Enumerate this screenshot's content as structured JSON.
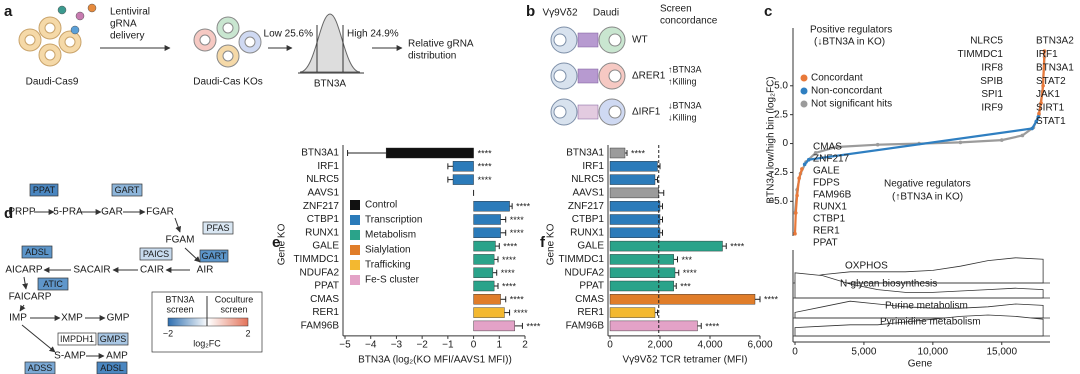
{
  "panel_labels": [
    "a",
    "b",
    "c",
    "d",
    "e",
    "f"
  ],
  "panel_a": {
    "delivery_text": [
      "Lentiviral",
      "gRNA",
      "delivery"
    ],
    "parent_cells": "Daudi-Cas9",
    "ko_cells": "Daudi-Cas KOs",
    "low_gate": "Low 25.6%",
    "high_gate": "High 24.9%",
    "histogram_axis": "BTN3A",
    "output": [
      "Relative gRNA",
      "distribution"
    ]
  },
  "panel_b": {
    "effector": "Vγ9Vδ2",
    "target": "Daudi",
    "header": [
      "Screen",
      "concordance"
    ],
    "rows": [
      {
        "label": "WT"
      },
      {
        "label": "ΔRER1",
        "items": [
          "↑BTN3A",
          "↑Killing"
        ]
      },
      {
        "label": "ΔIRF1",
        "items": [
          "↓BTN3A",
          "↓Killing"
        ]
      }
    ]
  },
  "panel_d": {
    "metabolites": [
      "PRPP",
      "5-PRA",
      "GAR",
      "FGAR",
      "FGAM",
      "AIR",
      "CAIR",
      "SACAIR",
      "AICARP",
      "FAICARP",
      "IMP",
      "XMP",
      "GMP",
      "S-AMP",
      "AMP"
    ],
    "enzymes": [
      "PPAT",
      "GART",
      "PFAS",
      "PAICS",
      "GART",
      "ADSL",
      "ATIC",
      "IMPDH1",
      "GMPS",
      "ADSS",
      "ADSL"
    ],
    "legend": {
      "rows": [
        "BTN3A",
        "screen",
        "Coculture",
        "screen"
      ],
      "min": "−2",
      "max": "2",
      "unit": "log₂FC"
    }
  },
  "chart_data": [
    {
      "type": "hbar",
      "ylabel": "Gene KO",
      "xlabel": "BTN3A (log₂(KO MFI/AAVS1 MFI))",
      "categories": [
        "BTN3A1",
        "IRF1",
        "NLRC5",
        "AAVS1",
        "ZNF217",
        "CTBP1",
        "RUNX1",
        "GALE",
        "TIMMDC1",
        "NDUFA2",
        "PPAT",
        "CMAS",
        "RER1",
        "FAM96B"
      ],
      "values": [
        -3.4,
        -0.8,
        -0.8,
        0,
        1.4,
        1.05,
        1.05,
        0.85,
        0.8,
        0.75,
        0.8,
        1.05,
        1.2,
        1.6
      ],
      "errors": [
        1.5,
        0.2,
        0.2,
        0,
        0.1,
        0.2,
        0.2,
        0.15,
        0.15,
        0.15,
        0.15,
        0.2,
        0.2,
        0.3
      ],
      "colors": [
        "#111111",
        "#2b7bba",
        "#2b7bba",
        "#111111",
        "#2b7bba",
        "#2b7bba",
        "#2b7bba",
        "#2aa38a",
        "#2aa38a",
        "#2aa38a",
        "#2aa38a",
        "#e07d2a",
        "#f3b830",
        "#e3a2c7"
      ],
      "significance": [
        "****",
        "****",
        "****",
        null,
        "****",
        "****",
        "****",
        "****",
        "****",
        "****",
        "****",
        "****",
        "****",
        "****"
      ],
      "xlim": [
        -5,
        2
      ],
      "xticks": [
        {
          "value": -5,
          "label": "−5"
        },
        {
          "value": -4,
          "label": "−4"
        },
        {
          "value": -3,
          "label": "−3"
        },
        {
          "value": -2,
          "label": "−2"
        },
        {
          "value": -1,
          "label": "−1"
        },
        0,
        1,
        2
      ],
      "legend": [
        {
          "name": "Control",
          "color": "#111111"
        },
        {
          "name": "Transcription",
          "color": "#2b7bba"
        },
        {
          "name": "Metabolism",
          "color": "#2aa38a"
        },
        {
          "name": "Sialylation",
          "color": "#e07d2a"
        },
        {
          "name": "Trafficking",
          "color": "#f3b830"
        },
        {
          "name": "Fe-S cluster",
          "color": "#e3a2c7"
        }
      ]
    },
    {
      "type": "hbar",
      "ylabel": "Gene KO",
      "xlabel": "Vγ9Vδ2 TCR tetramer (MFI)",
      "categories": [
        "BTN3A1",
        "IRF1",
        "NLRC5",
        "AAVS1",
        "ZNF217",
        "CTBP1",
        "RUNX1",
        "GALE",
        "TIMMDC1",
        "NDUFA2",
        "PPAT",
        "CMAS",
        "RER1",
        "FAM96B"
      ],
      "values": [
        600,
        1900,
        1800,
        1950,
        2000,
        2000,
        2000,
        4500,
        2550,
        2600,
        2550,
        5800,
        1800,
        3500
      ],
      "errors": [
        80,
        100,
        100,
        200,
        100,
        100,
        100,
        150,
        150,
        150,
        100,
        200,
        100,
        150
      ],
      "colors": [
        "#9b9b9b",
        "#2b7bba",
        "#2b7bba",
        "#9b9b9b",
        "#2b7bba",
        "#2b7bba",
        "#2b7bba",
        "#2aa38a",
        "#2aa38a",
        "#2aa38a",
        "#2aa38a",
        "#e07d2a",
        "#f3b830",
        "#e3a2c7"
      ],
      "significance": [
        "****",
        null,
        null,
        null,
        null,
        null,
        null,
        "****",
        "***",
        "****",
        "***",
        "****",
        null,
        "****"
      ],
      "xlim": [
        0,
        6000
      ],
      "xticks": [
        0,
        {
          "value": 2000,
          "label": "2,000"
        },
        {
          "value": 4000,
          "label": "4,000"
        },
        {
          "value": 6000,
          "label": "6,000"
        }
      ],
      "reference_line": true
    },
    {
      "type": "rank",
      "ylabel": "BTN3A low/high bin (log₂FC)",
      "xlim": [
        0,
        18500
      ],
      "ylim": [
        -8,
        10
      ],
      "yticks": [
        {
          "value": 5,
          "label": "5.0"
        },
        {
          "value": 2.5,
          "label": "2.5"
        },
        0,
        {
          "value": -2.5,
          "label": "−2.5"
        },
        {
          "value": -5,
          "label": "−5.0"
        }
      ],
      "series": [
        {
          "name": "Not significant hits",
          "color": "#9b9b9b",
          "x": [
            0,
            150,
            400,
            800,
            1500,
            3000,
            6000,
            9000,
            12000,
            15000,
            16500,
            17300,
            17700,
            17950,
            18100
          ],
          "values": [
            -6,
            -4,
            -2.6,
            -1.6,
            -0.8,
            -0.3,
            -0.1,
            0,
            0.1,
            0.3,
            0.7,
            1.4,
            2.5,
            4.5,
            7.5
          ]
        },
        {
          "name": "Concordant",
          "color": "#e8793a",
          "x": [
            0,
            60,
            150,
            300,
            500,
            9000,
            17700,
            17850,
            18000,
            18100
          ],
          "values": [
            -7.8,
            -6,
            -4.5,
            -3,
            -2.2,
            null,
            2.6,
            3.5,
            5,
            8
          ]
        },
        {
          "name": "Non-concordant",
          "color": "#2f7fc1",
          "x": [
            700,
            1000,
            17200,
            17500,
            17650
          ],
          "values": [
            -1.8,
            -1.4,
            1.3,
            1.9,
            2.3
          ]
        }
      ],
      "legend_order": [
        1,
        2,
        0
      ],
      "positive_annotation": [
        "Positive regulators",
        "(↓BTN3A in KO)"
      ],
      "negative_annotation": [
        "Negative regulators",
        "(↑BTN3A in KO)"
      ],
      "positive_genes_left": [
        "NLRC5",
        "TIMMDC1",
        "IRF8",
        "SPIB",
        "SPI1",
        "IRF9"
      ],
      "positive_genes_right": [
        "BTN3A2",
        "IRF1",
        "BTN3A1",
        "STAT2",
        "JAK1",
        "SIRT1",
        "STAT1"
      ],
      "negative_genes": [
        "CMAS",
        "ZNF217",
        "GALE",
        "FDPS",
        "FAM96B",
        "RUNX1",
        "CTBP1",
        "RER1",
        "PPAT"
      ]
    },
    {
      "type": "ridge",
      "xlabel": "Gene",
      "xlim": [
        0,
        18500
      ],
      "ylim": [
        0,
        1
      ],
      "xticks": [
        0,
        {
          "value": 5000,
          "label": "5,000"
        },
        {
          "value": 10000,
          "label": "10,000"
        },
        {
          "value": 15000,
          "label": "15,000"
        }
      ],
      "x": [
        0,
        2000,
        4000,
        6000,
        8000,
        10000,
        12000,
        14000,
        16000,
        18000
      ],
      "series": [
        {
          "name": "OXPHOS",
          "values": [
            0.1,
            0.3,
            0.4,
            0.4,
            0.4,
            0.45,
            0.6,
            0.8,
            0.9,
            0.85
          ]
        },
        {
          "name": "N-glycan biosynthesis",
          "values": [
            0.9,
            0.8,
            0.5,
            0.3,
            0.2,
            0.2,
            0.25,
            0.3,
            0.35,
            0.3
          ]
        },
        {
          "name": "Purine metabolism",
          "values": [
            0.2,
            0.4,
            0.6,
            0.5,
            0.4,
            0.35,
            0.35,
            0.4,
            0.5,
            0.45
          ]
        },
        {
          "name": "Pyrimidine metabolism",
          "values": [
            0.3,
            0.35,
            0.4,
            0.4,
            0.5,
            0.6,
            0.7,
            0.75,
            0.7,
            0.6
          ]
        }
      ]
    }
  ]
}
